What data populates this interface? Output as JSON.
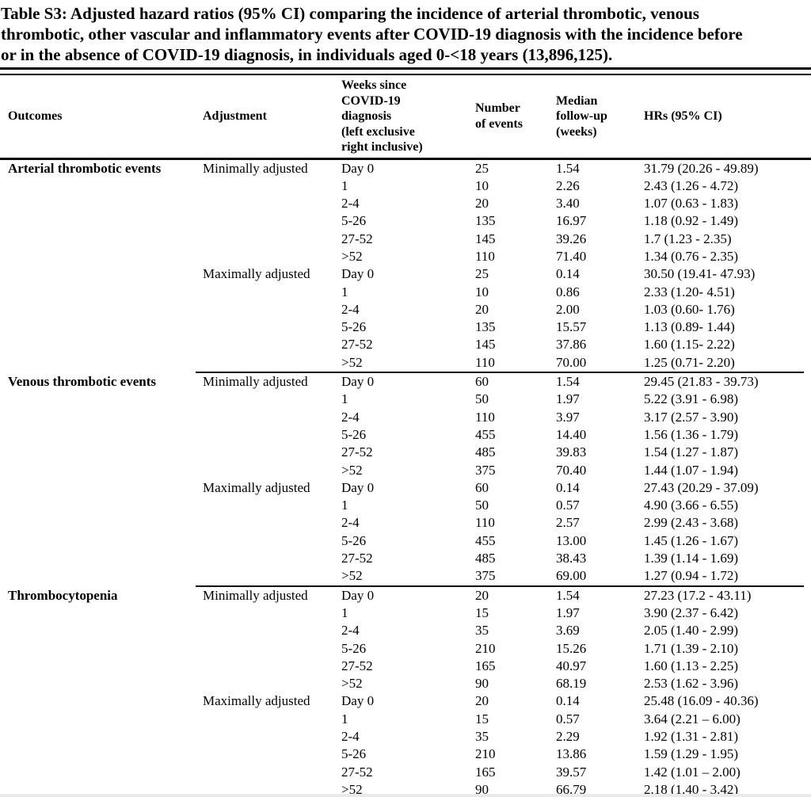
{
  "title": {
    "lines": [
      "Table S3: Adjusted hazard ratios (95% CI) comparing the incidence of arterial thrombotic, venous",
      "thrombotic, other vascular and inflammatory events after COVID-19 diagnosis with the incidence before",
      "or in the absence of COVID-19 diagnosis, in individuals aged 0-<18 years (13,896,125)."
    ]
  },
  "table": {
    "columns": [
      "Outcomes",
      "Adjustment",
      "Weeks since\nCOVID-19\ndiagnosis\n(left exclusive\nright inclusive)",
      "Number\nof events",
      "Median\nfollow-up\n(weeks)",
      "HRs (95% CI)"
    ],
    "groups": [
      {
        "outcome": "Arterial thrombotic events",
        "blocks": [
          {
            "adjustment": "Minimally adjusted",
            "rows": [
              {
                "weeks": "Day 0",
                "events": "25",
                "median": "1.54",
                "hr": "31.79 (20.26 - 49.89)"
              },
              {
                "weeks": "1",
                "events": "10",
                "median": "2.26",
                "hr": "2.43 (1.26 - 4.72)"
              },
              {
                "weeks": "2-4",
                "events": "20",
                "median": "3.40",
                "hr": "1.07 (0.63 - 1.83)"
              },
              {
                "weeks": "5-26",
                "events": "135",
                "median": "16.97",
                "hr": "1.18 (0.92 - 1.49)"
              },
              {
                "weeks": "27-52",
                "events": "145",
                "median": "39.26",
                "hr": "1.7 (1.23 - 2.35)"
              },
              {
                "weeks": ">52",
                "events": "110",
                "median": "71.40",
                "hr": "1.34 (0.76 - 2.35)"
              }
            ]
          },
          {
            "adjustment": "Maximally adjusted",
            "rows": [
              {
                "weeks": "Day 0",
                "events": "25",
                "median": "0.14",
                "hr": "30.50 (19.41- 47.93)"
              },
              {
                "weeks": "1",
                "events": "10",
                "median": "0.86",
                "hr": "2.33 (1.20- 4.51)"
              },
              {
                "weeks": "2-4",
                "events": "20",
                "median": "2.00",
                "hr": "1.03 (0.60- 1.76)"
              },
              {
                "weeks": "5-26",
                "events": "135",
                "median": "15.57",
                "hr": "1.13 (0.89- 1.44)"
              },
              {
                "weeks": "27-52",
                "events": "145",
                "median": "37.86",
                "hr": "1.60 (1.15- 2.22)"
              },
              {
                "weeks": ">52",
                "events": "110",
                "median": "70.00",
                "hr": "1.25 (0.71- 2.20)"
              }
            ]
          }
        ]
      },
      {
        "outcome": "Venous thrombotic events",
        "blocks": [
          {
            "adjustment": "Minimally adjusted",
            "rows": [
              {
                "weeks": "Day 0",
                "events": "60",
                "median": "1.54",
                "hr": "29.45 (21.83 - 39.73)"
              },
              {
                "weeks": "1",
                "events": "50",
                "median": "1.97",
                "hr": "5.22 (3.91 - 6.98)"
              },
              {
                "weeks": "2-4",
                "events": "110",
                "median": "3.97",
                "hr": "3.17 (2.57 - 3.90)"
              },
              {
                "weeks": "5-26",
                "events": "455",
                "median": "14.40",
                "hr": "1.56 (1.36 - 1.79)"
              },
              {
                "weeks": "27-52",
                "events": "485",
                "median": "39.83",
                "hr": "1.54 (1.27 - 1.87)"
              },
              {
                "weeks": ">52",
                "events": "375",
                "median": "70.40",
                "hr": "1.44 (1.07 - 1.94)"
              }
            ]
          },
          {
            "adjustment": "Maximally adjusted",
            "rows": [
              {
                "weeks": "Day 0",
                "events": "60",
                "median": "0.14",
                "hr": "27.43 (20.29 - 37.09)"
              },
              {
                "weeks": "1",
                "events": "50",
                "median": "0.57",
                "hr": "4.90 (3.66 - 6.55)"
              },
              {
                "weeks": "2-4",
                "events": "110",
                "median": "2.57",
                "hr": "2.99 (2.43 - 3.68)"
              },
              {
                "weeks": "5-26",
                "events": "455",
                "median": "13.00",
                "hr": "1.45 (1.26 - 1.67)"
              },
              {
                "weeks": "27-52",
                "events": "485",
                "median": "38.43",
                "hr": "1.39 (1.14 - 1.69)"
              },
              {
                "weeks": ">52",
                "events": "375",
                "median": "69.00",
                "hr": "1.27 (0.94 - 1.72)"
              }
            ]
          }
        ]
      },
      {
        "outcome": "Thrombocytopenia",
        "blocks": [
          {
            "adjustment": "Minimally adjusted",
            "rows": [
              {
                "weeks": "Day 0",
                "events": "20",
                "median": "1.54",
                "hr": "27.23 (17.2 - 43.11)"
              },
              {
                "weeks": "1",
                "events": "15",
                "median": "1.97",
                "hr": "3.90 (2.37 - 6.42)"
              },
              {
                "weeks": "2-4",
                "events": "35",
                "median": "3.69",
                "hr": "2.05 (1.40 - 2.99)"
              },
              {
                "weeks": "5-26",
                "events": "210",
                "median": "15.26",
                "hr": "1.71 (1.39 - 2.10)"
              },
              {
                "weeks": "27-52",
                "events": "165",
                "median": "40.97",
                "hr": "1.60 (1.13 - 2.25)"
              },
              {
                "weeks": ">52",
                "events": "90",
                "median": "68.19",
                "hr": "2.53 (1.62 - 3.96)"
              }
            ]
          },
          {
            "adjustment": "Maximally adjusted",
            "rows": [
              {
                "weeks": "Day 0",
                "events": "20",
                "median": "0.14",
                "hr": "25.48 (16.09 - 40.36)"
              },
              {
                "weeks": "1",
                "events": "15",
                "median": "0.57",
                "hr": "3.64 (2.21 – 6.00)"
              },
              {
                "weeks": "2-4",
                "events": "35",
                "median": "2.29",
                "hr": "1.92 (1.31 - 2.81)"
              },
              {
                "weeks": "5-26",
                "events": "210",
                "median": "13.86",
                "hr": "1.59 (1.29 - 1.95)"
              },
              {
                "weeks": "27-52",
                "events": "165",
                "median": "39.57",
                "hr": "1.42 (1.01 – 2.00)"
              },
              {
                "weeks": ">52",
                "events": "90",
                "median": "66.79",
                "hr": "2.18 (1.40 - 3.42)"
              }
            ]
          }
        ]
      }
    ]
  }
}
